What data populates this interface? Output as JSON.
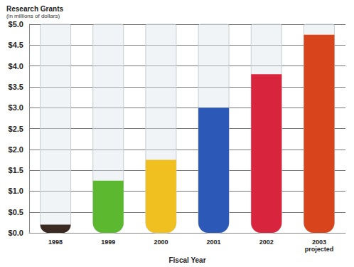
{
  "chart_data": {
    "type": "bar",
    "title": "Research Grants",
    "subtitle": "(in millions of dollars)",
    "x_label": "Fiscal Year",
    "categories": [
      "1998",
      "1999",
      "2000",
      "2001",
      "2002",
      "2003\nprojected"
    ],
    "values": [
      0.2,
      1.25,
      1.75,
      3.0,
      3.8,
      4.75
    ],
    "colors": [
      "#3a2a22",
      "#5cb82e",
      "#f0c020",
      "#2c58b8",
      "#d8243c",
      "#d8441c"
    ],
    "ylim": [
      0,
      5
    ],
    "yticks": [
      {
        "value": 0,
        "label": "$0.0"
      },
      {
        "value": 0.5,
        "label": "$0.5"
      },
      {
        "value": 1,
        "label": "$1.0"
      },
      {
        "value": 1.5,
        "label": "$1.5"
      },
      {
        "value": 2,
        "label": "$2.0"
      },
      {
        "value": 2.5,
        "label": "$2.5"
      },
      {
        "value": 3,
        "label": "$3.0"
      },
      {
        "value": 3.5,
        "label": "$3.5"
      },
      {
        "value": 4,
        "label": "$4.0"
      },
      {
        "value": 4.5,
        "label": "$4.5"
      },
      {
        "value": 5,
        "label": "$5.0"
      }
    ],
    "grid": true
  }
}
